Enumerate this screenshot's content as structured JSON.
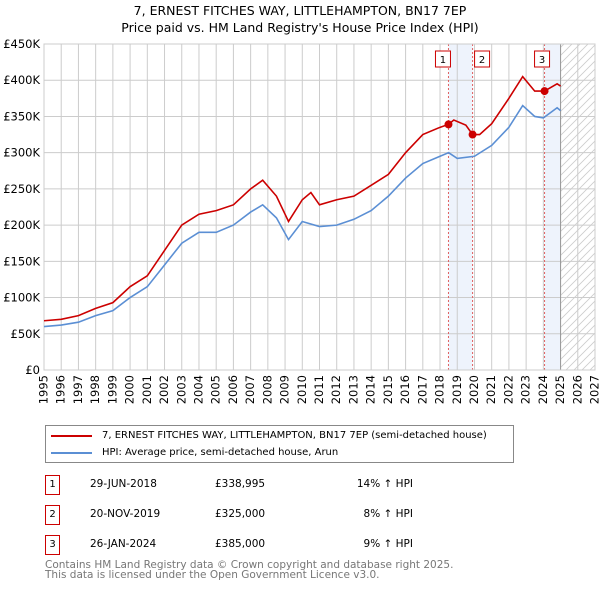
{
  "chart_data": {
    "type": "line",
    "title": "7, ERNEST FITCHES WAY, LITTLEHAMPTON, BN17 7EP",
    "subtitle": "Price paid vs. HM Land Registry's House Price Index (HPI)",
    "xlim": [
      1995,
      2027
    ],
    "ylim": [
      0,
      450000
    ],
    "x_ticks": [
      "1995",
      "1996",
      "1997",
      "1998",
      "1999",
      "2000",
      "2001",
      "2002",
      "2003",
      "2004",
      "2005",
      "2006",
      "2007",
      "2008",
      "2009",
      "2010",
      "2011",
      "2012",
      "2013",
      "2014",
      "2015",
      "2016",
      "2017",
      "2018",
      "2019",
      "2020",
      "2021",
      "2022",
      "2023",
      "2024",
      "2025",
      "2026",
      "2027"
    ],
    "y_ticks": [
      {
        "v": 0,
        "label": "£0"
      },
      {
        "v": 50000,
        "label": "£50K"
      },
      {
        "v": 100000,
        "label": "£100K"
      },
      {
        "v": 150000,
        "label": "£150K"
      },
      {
        "v": 200000,
        "label": "£200K"
      },
      {
        "v": 250000,
        "label": "£250K"
      },
      {
        "v": 300000,
        "label": "£300K"
      },
      {
        "v": 350000,
        "label": "£350K"
      },
      {
        "v": 400000,
        "label": "£400K"
      },
      {
        "v": 450000,
        "label": "£450K"
      }
    ],
    "series": [
      {
        "name": "7, ERNEST FITCHES WAY, LITTLEHAMPTON, BN17 7EP (semi-detached house)",
        "color": "#cc0000",
        "x": [
          1995,
          1996,
          1997,
          1998,
          1999,
          2000,
          2001,
          2002,
          2003,
          2004,
          2005,
          2006,
          2007,
          2007.7,
          2008.5,
          2009.2,
          2010,
          2010.5,
          2011,
          2012,
          2013,
          2014,
          2015,
          2016,
          2017,
          2018,
          2018.49,
          2018.8,
          2019.5,
          2019.89,
          2020.3,
          2021,
          2022,
          2022.8,
          2023.5,
          2024.07,
          2024.8,
          2025
        ],
        "y": [
          68000,
          70000,
          75000,
          85000,
          93000,
          115000,
          130000,
          165000,
          200000,
          215000,
          220000,
          228000,
          250000,
          262000,
          240000,
          205000,
          235000,
          245000,
          228000,
          235000,
          240000,
          255000,
          270000,
          300000,
          325000,
          335000,
          338995,
          345000,
          338000,
          325000,
          325000,
          340000,
          375000,
          405000,
          385000,
          385000,
          395000,
          392000
        ]
      },
      {
        "name": "HPI: Average price, semi-detached house, Arun",
        "color": "#5b8fd4",
        "x": [
          1995,
          1996,
          1997,
          1998,
          1999,
          2000,
          2001,
          2002,
          2003,
          2004,
          2005,
          2006,
          2007,
          2007.7,
          2008.5,
          2009.2,
          2010,
          2011,
          2012,
          2013,
          2014,
          2015,
          2016,
          2017,
          2018,
          2018.5,
          2019,
          2020,
          2021,
          2022,
          2022.8,
          2023.5,
          2024,
          2024.8,
          2025
        ],
        "y": [
          60000,
          62000,
          66000,
          75000,
          82000,
          100000,
          115000,
          145000,
          175000,
          190000,
          190000,
          200000,
          218000,
          228000,
          210000,
          180000,
          205000,
          198000,
          200000,
          208000,
          220000,
          240000,
          265000,
          285000,
          295000,
          300000,
          292000,
          295000,
          310000,
          335000,
          365000,
          350000,
          348000,
          362000,
          358000
        ]
      }
    ],
    "sales": [
      {
        "id": "1",
        "x": 2018.49,
        "y": 338995,
        "date": "29-JUN-2018",
        "price": "£338,995",
        "hpi": "14% ↑ HPI"
      },
      {
        "id": "2",
        "x": 2019.89,
        "y": 325000,
        "date": "20-NOV-2019",
        "price": "£325,000",
        "hpi": "8% ↑ HPI"
      },
      {
        "id": "3",
        "x": 2024.07,
        "y": 385000,
        "date": "26-JAN-2024",
        "price": "£385,000",
        "hpi": "9% ↑ HPI"
      }
    ],
    "forecast_start": 2025,
    "grid": true
  },
  "legend": {
    "red": "7, ERNEST FITCHES WAY, LITTLEHAMPTON, BN17 7EP (semi-detached house)",
    "blue": "HPI: Average price, semi-detached house, Arun"
  },
  "footer": [
    "Contains HM Land Registry data © Crown copyright and database right 2025.",
    "This data is licensed under the Open Government Licence v3.0."
  ]
}
